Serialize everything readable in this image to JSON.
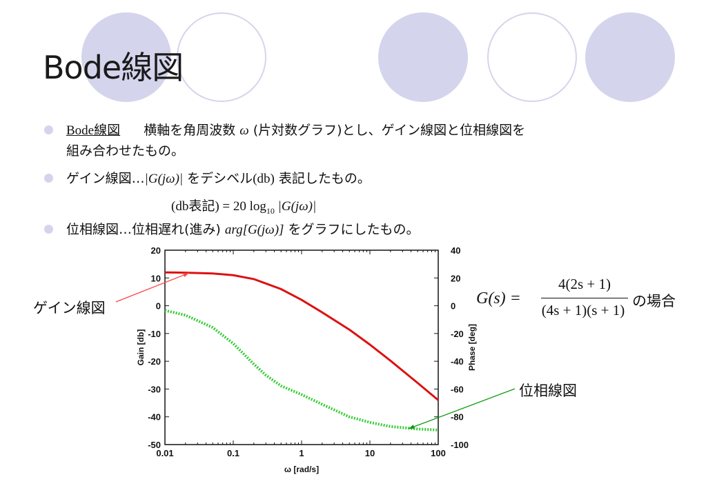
{
  "title": "Bode線図",
  "bullets": {
    "b1": {
      "term": "Bode線図",
      "text_pre": "横軸を角周波数",
      "omega": "ω",
      "text_post": "(片対数グラフ)とし、ゲイン線図と位相線図を",
      "line2": "組み合わせたもの。"
    },
    "b2": {
      "pre": "ゲイン線図…",
      "expr": "|G(jω)|",
      "post": " をデシベル",
      "db": "(db)",
      "post2": " 表記したもの。"
    },
    "formula_line": {
      "pre": "(db表記) = 20 log",
      "sub": "10",
      "post": " |G(jω)|"
    },
    "b3": {
      "pre": "位相線図…位相遅れ(進み) ",
      "expr": "arg[G(jω)]",
      "post": " をグラフにしたもの。"
    }
  },
  "callouts": {
    "gain": "ゲイン線図",
    "phase": "位相線図"
  },
  "formula": {
    "lhs": "G(s) =",
    "numerator": "4(2s + 1)",
    "denominator": "(4s + 1)(s + 1)",
    "tail": "の場合"
  },
  "colors": {
    "gain_line": "#dd1111",
    "phase_line": "#33cc33",
    "decor": "#d4d4ec",
    "gain_arrow": "#ff4444",
    "phase_arrow": "#119911"
  },
  "chart_data": {
    "type": "line",
    "xscale": "log",
    "xlabel": "ω [rad/s]",
    "ylabel": "Gain [db]",
    "y2label": "Phase [deg]",
    "xlim": [
      0.01,
      100
    ],
    "ylim": [
      -50,
      20
    ],
    "y2lim": [
      -100,
      40
    ],
    "x_ticks": [
      "0.01",
      "0.1",
      "1",
      "10",
      "100"
    ],
    "y_ticks": [
      "20",
      "10",
      "0",
      "-10",
      "-20",
      "-30",
      "-40",
      "-50"
    ],
    "y2_ticks": [
      "40",
      "20",
      "0",
      "-20",
      "-40",
      "-60",
      "-80",
      "-100"
    ],
    "series": [
      {
        "axis": "left",
        "style": "solid",
        "x": [
          0.01,
          0.02,
          0.05,
          0.1,
          0.2,
          0.5,
          1,
          2,
          5,
          10,
          20,
          50,
          100
        ],
        "y": [
          12.0,
          11.9,
          11.6,
          11.0,
          9.6,
          6.0,
          2.1,
          -2.4,
          -8.6,
          -14.0,
          -19.8,
          -27.8,
          -34.0
        ]
      },
      {
        "axis": "right",
        "style": "dotted",
        "x": [
          0.01,
          0.02,
          0.05,
          0.1,
          0.2,
          0.3,
          0.5,
          1,
          2,
          5,
          10,
          20,
          50,
          100
        ],
        "y": [
          -3.4,
          -6.8,
          -15.7,
          -27.2,
          -42.0,
          -50.0,
          -57.7,
          -64.0,
          -71.0,
          -80.0,
          -84.0,
          -87.0,
          -88.8,
          -89.5
        ]
      }
    ]
  }
}
